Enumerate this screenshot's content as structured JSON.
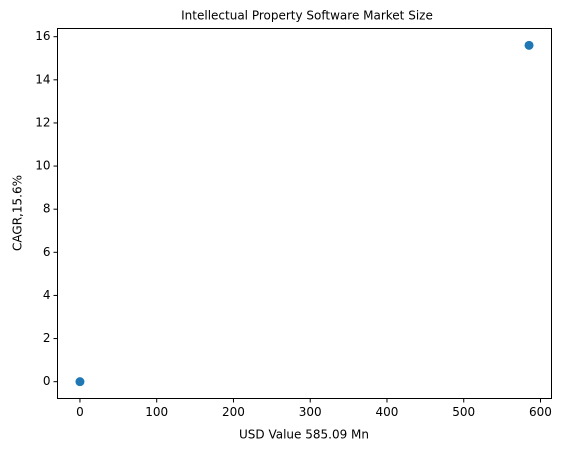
{
  "chart_data": {
    "type": "scatter",
    "title": "Intellectual Property Software Market Size",
    "xlabel": "USD Value 585.09 Mn",
    "ylabel": "CAGR,15.6%",
    "x": [
      0,
      585.09
    ],
    "values": [
      0,
      15.6
    ],
    "color": "#1f77b4",
    "xlim": [
      -29.25,
      614.34
    ],
    "ylim": [
      -0.78,
      16.38
    ],
    "xticks": [
      0,
      100,
      200,
      300,
      400,
      500,
      600
    ],
    "yticks": [
      0,
      2,
      4,
      6,
      8,
      10,
      12,
      14,
      16
    ],
    "grid": false
  }
}
